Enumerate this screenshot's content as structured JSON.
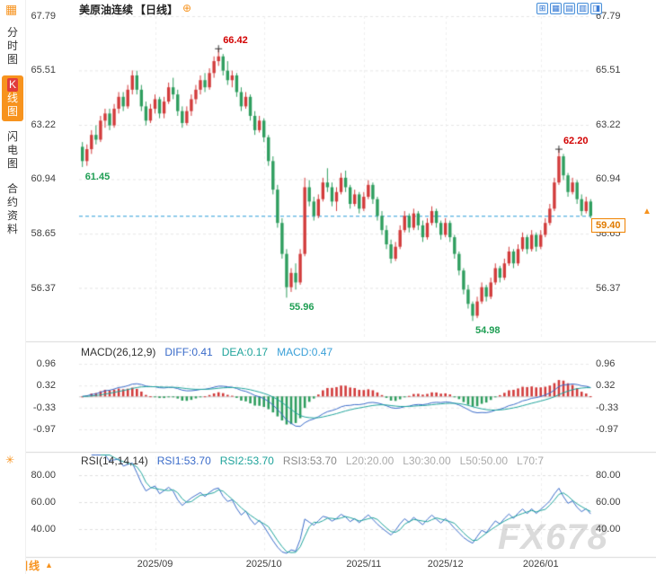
{
  "header": {
    "symbol": "美原油连续",
    "period": "【日线】"
  },
  "icons": {
    "layout_glyph": "▦",
    "plus_glyph": "⊕",
    "settings_glyph": "✳",
    "up_arrow_glyph": "▲",
    "toolbar": [
      {
        "name": "pan-icon",
        "glyph": "⊞"
      },
      {
        "name": "grid-icon",
        "glyph": "▦"
      },
      {
        "name": "rows-icon",
        "glyph": "▤"
      },
      {
        "name": "columns-icon",
        "glyph": "▥"
      },
      {
        "name": "split-view-icon",
        "glyph": "◨"
      }
    ]
  },
  "sidebar": {
    "items": [
      {
        "name": "tab-time-chart",
        "label": "分时图",
        "active": false
      },
      {
        "name": "tab-kline-chart",
        "label": "K线图",
        "active": true
      },
      {
        "name": "tab-lightning-chart",
        "label": "闪电图",
        "active": false
      },
      {
        "name": "tab-contract-info",
        "label": "合约资料",
        "active": false
      }
    ]
  },
  "colors": {
    "up": "#d23c3c",
    "down": "#2f9e5f",
    "accent": "#f7931e",
    "annotation_high": "#d20000",
    "annotation_low": "#1e9e53",
    "last_price_line": "#2b9cd8",
    "diff_line": "#3a6bc9",
    "dea_line": "#1fa39b",
    "grid": "#e5e5e5"
  },
  "chart_data": {
    "type": "candlestick",
    "title": "美原油连续【日线】",
    "ohlc_format": [
      "open",
      "high",
      "low",
      "close"
    ],
    "y_axis_labels": [
      67.79,
      65.51,
      63.22,
      60.94,
      58.65,
      56.37
    ],
    "x_labels": [
      "2025/09",
      "2025/10",
      "2025/11",
      "2025/12",
      "2026/01"
    ],
    "month_start_indices": [
      16,
      40,
      62,
      80,
      101
    ],
    "last_price": 59.4,
    "annotations": [
      {
        "text": "61.45",
        "index": 0,
        "kind": "low"
      },
      {
        "text": "66.42",
        "index": 30,
        "kind": "high"
      },
      {
        "text": "55.96",
        "index": 45,
        "kind": "low"
      },
      {
        "text": "54.98",
        "index": 86,
        "kind": "low"
      },
      {
        "text": "62.20",
        "index": 105,
        "kind": "high"
      }
    ],
    "candles": [
      [
        62.3,
        62.5,
        61.45,
        61.7
      ],
      [
        61.7,
        62.4,
        61.5,
        62.2
      ],
      [
        62.2,
        63.0,
        62.0,
        62.8
      ],
      [
        62.8,
        63.2,
        62.4,
        62.6
      ],
      [
        62.6,
        63.6,
        62.5,
        63.4
      ],
      [
        63.4,
        63.9,
        63.1,
        63.7
      ],
      [
        63.7,
        63.9,
        63.0,
        63.2
      ],
      [
        63.2,
        64.1,
        63.1,
        63.9
      ],
      [
        63.9,
        64.6,
        63.7,
        64.4
      ],
      [
        64.4,
        64.6,
        63.8,
        64.0
      ],
      [
        64.0,
        64.9,
        63.9,
        64.7
      ],
      [
        64.7,
        65.51,
        64.5,
        65.3
      ],
      [
        65.3,
        65.5,
        64.5,
        64.7
      ],
      [
        64.7,
        64.9,
        63.8,
        64.0
      ],
      [
        64.0,
        64.2,
        63.2,
        63.4
      ],
      [
        63.4,
        64.1,
        63.3,
        63.9
      ],
      [
        63.9,
        64.5,
        63.7,
        64.3
      ],
      [
        64.3,
        64.4,
        63.5,
        63.7
      ],
      [
        63.7,
        64.4,
        63.5,
        64.2
      ],
      [
        64.2,
        65.0,
        64.1,
        64.8
      ],
      [
        64.8,
        65.2,
        64.3,
        64.5
      ],
      [
        64.5,
        64.7,
        63.6,
        63.8
      ],
      [
        63.8,
        64.0,
        63.1,
        63.3
      ],
      [
        63.3,
        64.0,
        63.2,
        63.8
      ],
      [
        63.8,
        64.5,
        63.6,
        64.3
      ],
      [
        64.3,
        64.9,
        64.1,
        64.7
      ],
      [
        64.7,
        65.3,
        64.5,
        65.1
      ],
      [
        65.1,
        65.4,
        64.6,
        64.8
      ],
      [
        64.8,
        65.6,
        64.7,
        65.4
      ],
      [
        65.4,
        66.1,
        65.2,
        65.9
      ],
      [
        65.9,
        66.42,
        65.7,
        66.1
      ],
      [
        66.1,
        66.2,
        65.3,
        65.5
      ],
      [
        65.5,
        65.9,
        64.9,
        65.1
      ],
      [
        65.1,
        65.5,
        64.8,
        65.3
      ],
      [
        65.3,
        65.4,
        64.4,
        64.6
      ],
      [
        64.6,
        64.8,
        63.8,
        64.0
      ],
      [
        64.0,
        64.6,
        63.9,
        64.4
      ],
      [
        64.4,
        64.5,
        63.4,
        63.6
      ],
      [
        63.6,
        63.8,
        62.8,
        63.0
      ],
      [
        63.0,
        63.6,
        62.9,
        63.4
      ],
      [
        63.4,
        63.5,
        62.5,
        62.7
      ],
      [
        62.7,
        62.8,
        61.5,
        61.7
      ],
      [
        61.7,
        61.9,
        60.3,
        60.5
      ],
      [
        60.5,
        60.7,
        58.9,
        59.1
      ],
      [
        59.1,
        59.3,
        57.6,
        57.8
      ],
      [
        57.8,
        58.0,
        55.96,
        56.4
      ],
      [
        56.4,
        57.2,
        56.2,
        57.0
      ],
      [
        57.0,
        57.4,
        56.3,
        56.6
      ],
      [
        56.6,
        58.0,
        56.5,
        57.8
      ],
      [
        57.8,
        61.0,
        57.7,
        60.6
      ],
      [
        60.6,
        60.9,
        59.8,
        60.0
      ],
      [
        60.0,
        60.2,
        59.2,
        59.4
      ],
      [
        59.4,
        60.3,
        59.3,
        60.1
      ],
      [
        60.1,
        61.0,
        60.0,
        60.8
      ],
      [
        60.8,
        61.4,
        60.4,
        60.6
      ],
      [
        60.6,
        60.8,
        59.8,
        60.0
      ],
      [
        60.0,
        60.6,
        59.6,
        60.4
      ],
      [
        60.4,
        61.2,
        60.3,
        61.0
      ],
      [
        61.0,
        61.3,
        60.4,
        60.6
      ],
      [
        60.6,
        60.7,
        59.7,
        59.9
      ],
      [
        59.9,
        60.5,
        59.8,
        60.3
      ],
      [
        60.3,
        60.4,
        59.5,
        59.7
      ],
      [
        59.7,
        60.4,
        59.6,
        60.2
      ],
      [
        60.2,
        60.9,
        60.1,
        60.7
      ],
      [
        60.7,
        60.8,
        59.9,
        60.1
      ],
      [
        60.1,
        60.2,
        59.2,
        59.4
      ],
      [
        59.4,
        59.6,
        58.6,
        58.8
      ],
      [
        58.8,
        59.0,
        58.0,
        58.2
      ],
      [
        58.2,
        58.4,
        57.4,
        57.6
      ],
      [
        57.6,
        58.3,
        57.5,
        58.1
      ],
      [
        58.1,
        59.0,
        58.0,
        58.8
      ],
      [
        58.8,
        59.6,
        58.7,
        59.4
      ],
      [
        59.4,
        59.5,
        58.7,
        58.9
      ],
      [
        58.9,
        59.7,
        58.8,
        59.5
      ],
      [
        59.5,
        59.6,
        58.8,
        59.0
      ],
      [
        59.0,
        59.2,
        58.3,
        58.5
      ],
      [
        58.5,
        59.3,
        58.4,
        59.1
      ],
      [
        59.1,
        59.8,
        59.0,
        59.6
      ],
      [
        59.6,
        59.7,
        58.9,
        59.1
      ],
      [
        59.1,
        59.2,
        58.4,
        58.6
      ],
      [
        58.6,
        59.3,
        58.5,
        59.1
      ],
      [
        59.1,
        59.2,
        58.3,
        58.5
      ],
      [
        58.5,
        58.6,
        57.6,
        57.8
      ],
      [
        57.8,
        57.9,
        56.9,
        57.1
      ],
      [
        57.1,
        57.2,
        56.1,
        56.3
      ],
      [
        56.3,
        56.5,
        55.5,
        55.7
      ],
      [
        55.7,
        55.8,
        54.98,
        55.2
      ],
      [
        55.2,
        56.0,
        55.1,
        55.8
      ],
      [
        55.8,
        56.6,
        55.7,
        56.4
      ],
      [
        56.4,
        56.5,
        55.8,
        56.0
      ],
      [
        56.0,
        56.8,
        55.9,
        56.6
      ],
      [
        56.6,
        57.4,
        56.5,
        57.2
      ],
      [
        57.2,
        57.3,
        56.6,
        56.8
      ],
      [
        56.8,
        57.6,
        56.7,
        57.4
      ],
      [
        57.4,
        58.1,
        57.3,
        57.9
      ],
      [
        57.9,
        58.0,
        57.2,
        57.4
      ],
      [
        57.4,
        58.2,
        57.3,
        58.0
      ],
      [
        58.0,
        58.7,
        57.9,
        58.5
      ],
      [
        58.5,
        58.6,
        57.8,
        58.0
      ],
      [
        58.0,
        58.8,
        57.9,
        58.6
      ],
      [
        58.6,
        58.7,
        57.9,
        58.1
      ],
      [
        58.1,
        58.8,
        58.0,
        58.6
      ],
      [
        58.6,
        59.3,
        58.5,
        59.1
      ],
      [
        59.1,
        59.9,
        59.0,
        59.7
      ],
      [
        59.7,
        61.0,
        59.6,
        60.8
      ],
      [
        60.8,
        62.2,
        60.7,
        61.9
      ],
      [
        61.9,
        62.0,
        60.9,
        61.1
      ],
      [
        61.1,
        61.2,
        60.2,
        60.4
      ],
      [
        60.4,
        61.0,
        60.3,
        60.8
      ],
      [
        60.8,
        60.9,
        59.9,
        60.1
      ],
      [
        60.1,
        60.3,
        59.4,
        59.6
      ],
      [
        59.6,
        60.2,
        59.5,
        60.0
      ],
      [
        60.0,
        60.1,
        59.3,
        59.4
      ]
    ],
    "macd": {
      "title": "MACD(26,12,9)",
      "diff": 0.41,
      "dea": 0.17,
      "macd": 0.47,
      "items": [
        {
          "text": "DIFF:0.41",
          "color": "#3a6bc9"
        },
        {
          "text": "DEA:0.17",
          "color": "#1fa39b"
        },
        {
          "text": "MACD:0.47",
          "color": "#3aa0d8"
        }
      ],
      "y_axis_labels": [
        0.96,
        0.32,
        -0.33,
        -0.97
      ]
    },
    "rsi": {
      "title": "RSI(14,14,14)",
      "items": [
        {
          "text": "RSI1:53.70",
          "color": "#3a6bc9"
        },
        {
          "text": "RSI2:53.70",
          "color": "#1fa39b"
        },
        {
          "text": "RSI3:53.70",
          "color": "#8a8a8a"
        },
        {
          "text": "L20:20.00",
          "color": "#aaaaaa"
        },
        {
          "text": "L30:30.00",
          "color": "#aaaaaa"
        },
        {
          "text": "L50:50.00",
          "color": "#aaaaaa"
        },
        {
          "text": "L70:7",
          "color": "#aaaaaa"
        }
      ],
      "y_axis_labels": [
        80,
        60,
        40
      ]
    }
  },
  "bottom": {
    "period_label": "日线"
  },
  "watermark": "FX678"
}
